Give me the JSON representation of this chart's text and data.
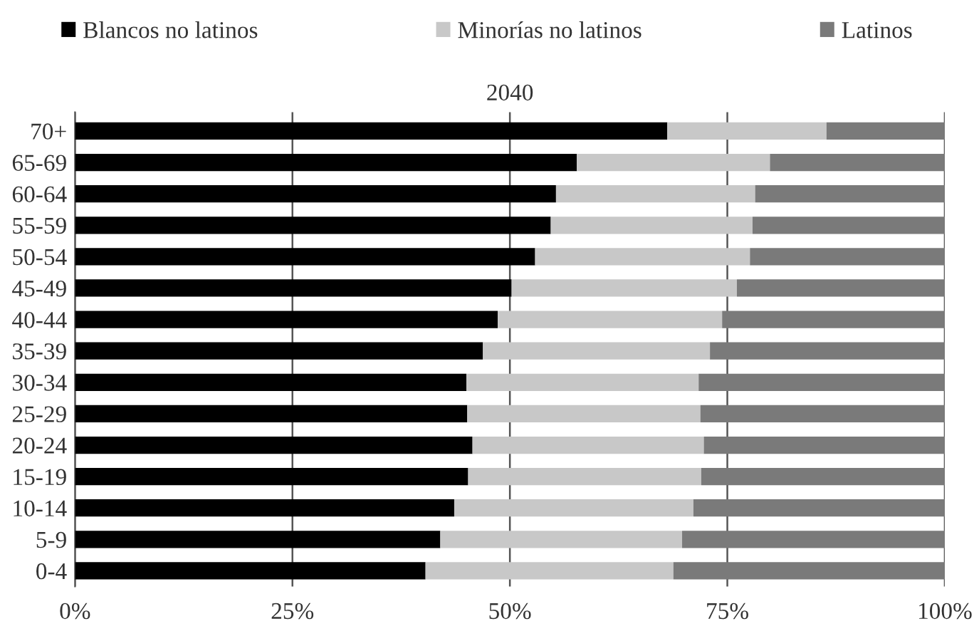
{
  "chart_data": {
    "type": "bar",
    "orientation": "horizontal",
    "stacked": true,
    "title": "2040",
    "categories": [
      "70+",
      "65-69",
      "60-64",
      "55-59",
      "50-54",
      "45-49",
      "40-44",
      "35-39",
      "30-34",
      "25-29",
      "20-24",
      "15-19",
      "10-14",
      "5-9",
      "0-4"
    ],
    "series": [
      {
        "name": "Blancos no latinos",
        "color": "#000000",
        "values": [
          68.1,
          57.7,
          55.3,
          54.7,
          52.9,
          50.2,
          48.6,
          46.9,
          45.0,
          45.1,
          45.7,
          45.2,
          43.6,
          42.0,
          40.3
        ]
      },
      {
        "name": "Minorías no latinos",
        "color": "#c8c8c8",
        "values": [
          18.3,
          22.2,
          22.9,
          23.2,
          24.7,
          25.9,
          25.8,
          26.1,
          26.7,
          26.8,
          26.6,
          26.8,
          27.5,
          27.8,
          28.5
        ]
      },
      {
        "name": "Latinos",
        "color": "#7a7a7a",
        "values": [
          13.6,
          20.1,
          21.8,
          22.1,
          22.4,
          23.9,
          25.6,
          27.0,
          28.3,
          28.1,
          27.7,
          28.0,
          28.9,
          30.2,
          31.2
        ]
      }
    ],
    "xlim": [
      0,
      100
    ],
    "xticks": [
      {
        "value": 0,
        "label": "0%"
      },
      {
        "value": 25,
        "label": "25%"
      },
      {
        "value": 50,
        "label": "50%"
      },
      {
        "value": 75,
        "label": "75%"
      },
      {
        "value": 100,
        "label": "100%"
      }
    ],
    "grid": "x",
    "legend": "top"
  }
}
